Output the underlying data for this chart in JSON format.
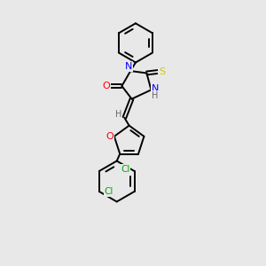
{
  "background_color": "#e8e8e8",
  "bond_color": "#000000",
  "atom_colors": {
    "N": "#0000ff",
    "O": "#ff0000",
    "S": "#cccc00",
    "Cl": "#00aa00",
    "H": "#666666"
  },
  "figsize": [
    3.0,
    3.0
  ],
  "dpi": 100
}
